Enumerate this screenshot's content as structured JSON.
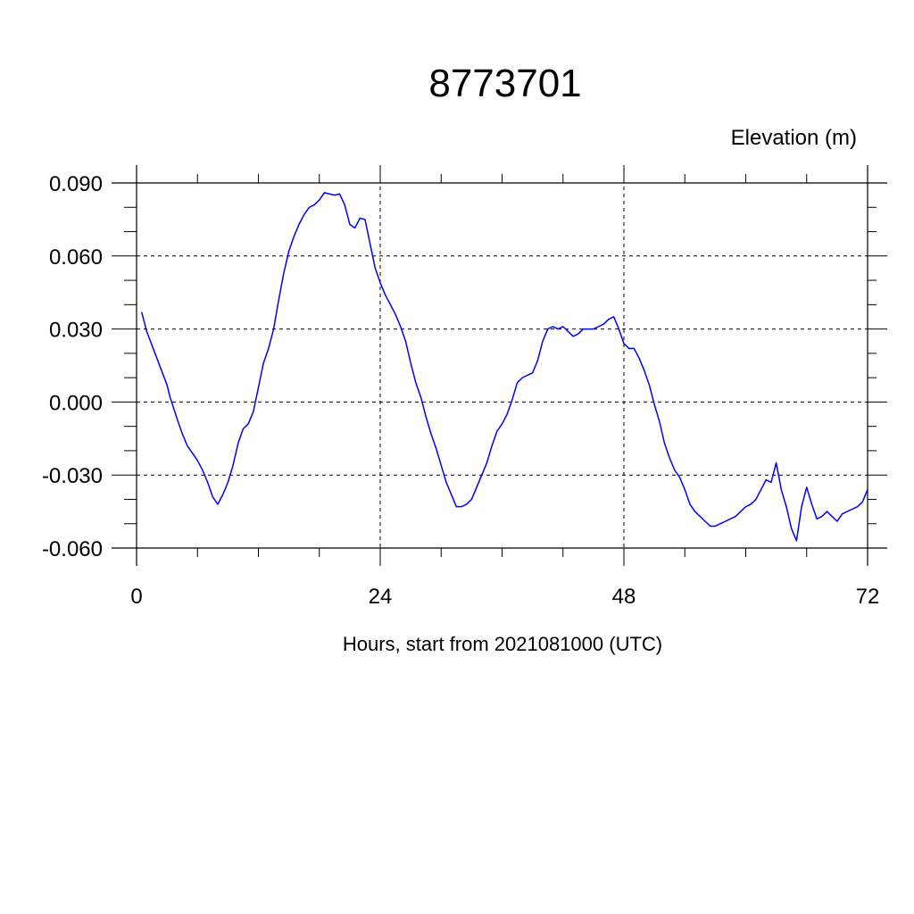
{
  "chart_data": {
    "type": "line",
    "title": "8773701",
    "units_label": "Elevation (m)",
    "xlabel": "Hours, start from 2021081000 (UTC)",
    "ylabel": "",
    "xlim": [
      0,
      72
    ],
    "ylim": [
      -0.06,
      0.09
    ],
    "x_ticks": [
      0,
      24,
      48,
      72
    ],
    "x_tick_labels": [
      "0",
      "24",
      "48",
      "72"
    ],
    "y_ticks": [
      -0.06,
      -0.03,
      0.0,
      0.03,
      0.06,
      0.09
    ],
    "y_tick_labels": [
      "-0.060",
      "-0.030",
      "0.000",
      "0.030",
      "0.060",
      "0.090"
    ],
    "grid": true,
    "grid_style": "dashed",
    "line_color": "#0000ff",
    "series": [
      {
        "x": [
          0.5,
          1,
          2,
          3,
          3.3,
          4,
          4.5,
          5,
          6,
          6.5,
          7,
          7.5,
          8,
          8.5,
          9,
          9.5,
          10,
          10.5,
          11,
          11.5,
          12,
          12.5,
          13,
          13.5,
          14,
          14.5,
          15,
          15.5,
          16,
          16.5,
          17,
          17.5,
          18,
          18.5,
          19,
          19.5,
          20,
          20.5,
          21,
          21.5,
          22,
          22.5,
          23,
          23.5,
          24,
          24.5,
          25,
          25.5,
          26,
          26.5,
          27,
          27.5,
          28,
          28.5,
          29,
          29.5,
          30,
          30.5,
          31,
          31.5,
          32,
          32.5,
          33,
          33.5,
          34,
          34.5,
          35,
          35.5,
          36,
          36.5,
          37,
          37.5,
          38,
          38.5,
          39,
          39.5,
          40,
          40.5,
          41,
          41.5,
          42,
          42.5,
          43,
          43.5,
          44,
          44.5,
          45,
          45.5,
          46,
          46.5,
          47,
          47.5,
          48,
          48.5,
          49,
          49.5,
          50,
          50.5,
          51,
          51.5,
          52,
          52.5,
          53,
          53.5,
          54,
          54.5,
          55,
          55.5,
          56,
          56.5,
          57,
          57.5,
          58,
          58.5,
          59,
          59.5,
          60,
          60.5,
          61,
          61.5,
          62,
          62.5,
          63,
          63.5,
          64,
          64.5,
          65,
          65.5,
          66,
          66.5,
          67,
          67.5,
          68,
          68.5,
          69,
          69.5,
          70,
          70.5,
          71,
          71.5,
          72
        ],
        "y": [
          0.037,
          0.029,
          0.018,
          0.007,
          0.002,
          -0.007,
          -0.013,
          -0.018,
          -0.024,
          -0.028,
          -0.033,
          -0.039,
          -0.042,
          -0.038,
          -0.033,
          -0.026,
          -0.017,
          -0.011,
          -0.009,
          -0.004,
          0.006,
          0.016,
          0.022,
          0.03,
          0.042,
          0.053,
          0.062,
          0.068,
          0.073,
          0.077,
          0.08,
          0.081,
          0.083,
          0.086,
          0.0855,
          0.085,
          0.0855,
          0.081,
          0.073,
          0.0715,
          0.0755,
          0.075,
          0.065,
          0.055,
          0.049,
          0.044,
          0.04,
          0.036,
          0.031,
          0.025,
          0.016,
          0.008,
          0.002,
          -0.006,
          -0.013,
          -0.019,
          -0.026,
          -0.033,
          -0.038,
          -0.043,
          -0.043,
          -0.042,
          -0.04,
          -0.035,
          -0.03,
          -0.025,
          -0.018,
          -0.012,
          -0.009,
          -0.005,
          0.001,
          0.008,
          0.01,
          0.011,
          0.012,
          0.017,
          0.025,
          0.03,
          0.031,
          0.03,
          0.031,
          0.029,
          0.027,
          0.028,
          0.03,
          0.03,
          0.03,
          0.031,
          0.032,
          0.034,
          0.035,
          0.03,
          0.024,
          0.022,
          0.022,
          0.018,
          0.013,
          0.007,
          -0.001,
          -0.008,
          -0.017,
          -0.023,
          -0.028,
          -0.031,
          -0.036,
          -0.042,
          -0.045,
          -0.047,
          -0.049,
          -0.051,
          -0.051,
          -0.05,
          -0.049,
          -0.048,
          -0.047,
          -0.045,
          -0.043,
          -0.042,
          -0.04,
          -0.036,
          -0.032,
          -0.033,
          -0.025,
          -0.036,
          -0.043,
          -0.052,
          -0.057,
          -0.043,
          -0.035,
          -0.042,
          -0.048,
          -0.047,
          -0.045,
          -0.047,
          -0.049,
          -0.046,
          -0.045,
          -0.044,
          -0.043,
          -0.041,
          -0.036
        ]
      }
    ]
  }
}
